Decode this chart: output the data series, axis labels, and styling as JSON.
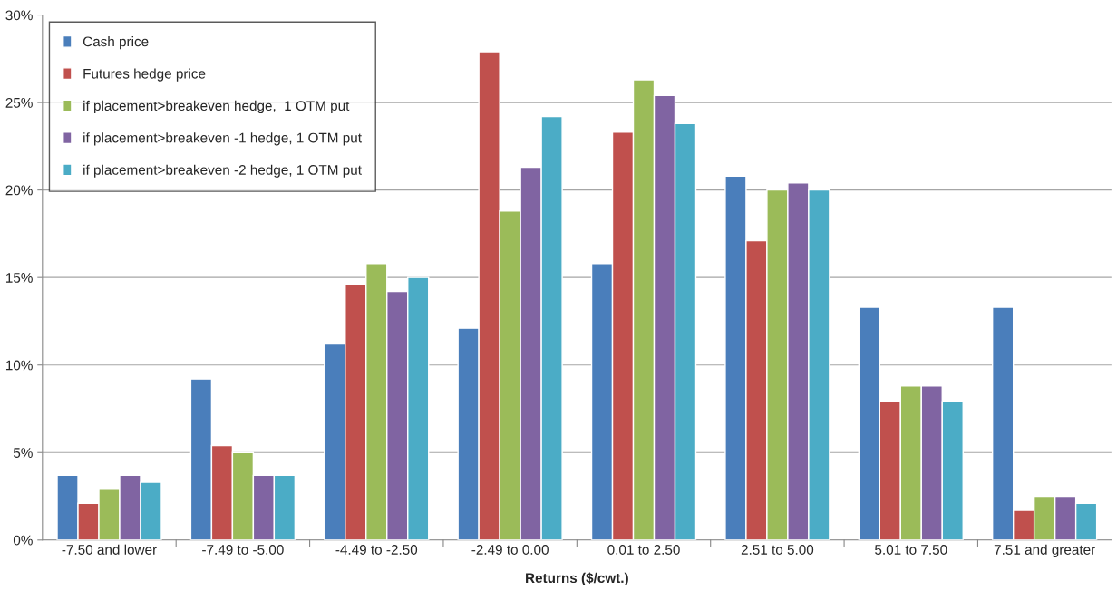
{
  "chart_data": {
    "type": "bar",
    "xlabel": "Returns ($/cwt.)",
    "categories": [
      "-7.50 and lower",
      "-7.49 to -5.00",
      "-4.49 to -2.50",
      "-2.49 to 0.00",
      "0.01 to 2.50",
      "2.51 to 5.00",
      "5.01 to 7.50",
      "7.51 and greater"
    ],
    "series": [
      {
        "name": "Cash price",
        "color": "#4a7ebb",
        "values": [
          3.7,
          9.2,
          11.2,
          12.1,
          15.8,
          20.8,
          13.3,
          13.3
        ]
      },
      {
        "name": "Futures hedge price",
        "color": "#c0504d",
        "values": [
          2.1,
          5.4,
          14.6,
          27.9,
          23.3,
          17.1,
          7.9,
          1.7
        ]
      },
      {
        "name": "if placement>breakeven hedge,  1 OTM put",
        "color": "#9bbb59",
        "values": [
          2.9,
          5.0,
          15.8,
          18.8,
          26.3,
          20.0,
          8.8,
          2.5
        ]
      },
      {
        "name": "if placement>breakeven -1 hedge, 1 OTM put",
        "color": "#8064a2",
        "values": [
          3.7,
          3.7,
          14.2,
          21.3,
          25.4,
          20.4,
          8.8,
          2.5
        ]
      },
      {
        "name": "if placement>breakeven -2 hedge, 1 OTM put",
        "color": "#4bacc6",
        "values": [
          3.3,
          3.7,
          15.0,
          24.2,
          23.8,
          20.0,
          7.9,
          2.1
        ]
      }
    ],
    "ylim": [
      0,
      30
    ],
    "yticks": [
      {
        "value": 0,
        "label": "0%"
      },
      {
        "value": 5,
        "label": "5%"
      },
      {
        "value": 10,
        "label": "10%"
      },
      {
        "value": 15,
        "label": "15%"
      },
      {
        "value": 20,
        "label": "20%"
      },
      {
        "value": 25,
        "label": "25%"
      },
      {
        "value": 30,
        "label": "30%"
      }
    ],
    "grid": "y",
    "legend": "top left"
  }
}
